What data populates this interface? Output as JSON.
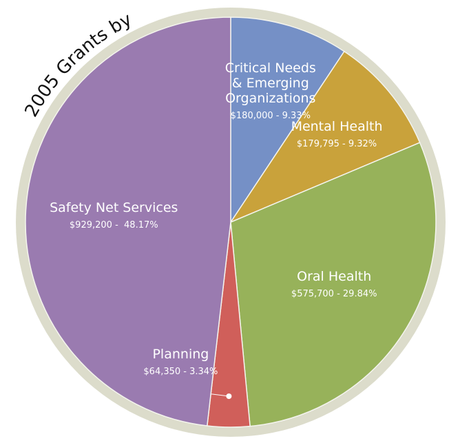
{
  "chart_data": {
    "type": "pie",
    "title": "2005 Grants by",
    "categories": [
      "Critical Needs\n& Emerging\nOrganizations",
      "Mental Health",
      "Oral Health",
      "Planning",
      "Safety Net Services"
    ],
    "values": [
      180000,
      179795,
      575700,
      64350,
      929200
    ],
    "value_labels": [
      "$180,000 - 9.33%",
      "$179,795 - 9.32%",
      "$575,700 - 29.84%",
      "$64,350 - 3.34%",
      "$929,200 -  48.17%"
    ],
    "colors": [
      "#7590c6",
      "#c9a23b",
      "#97b25a",
      "#d05f5a",
      "#9a7bb0"
    ]
  }
}
